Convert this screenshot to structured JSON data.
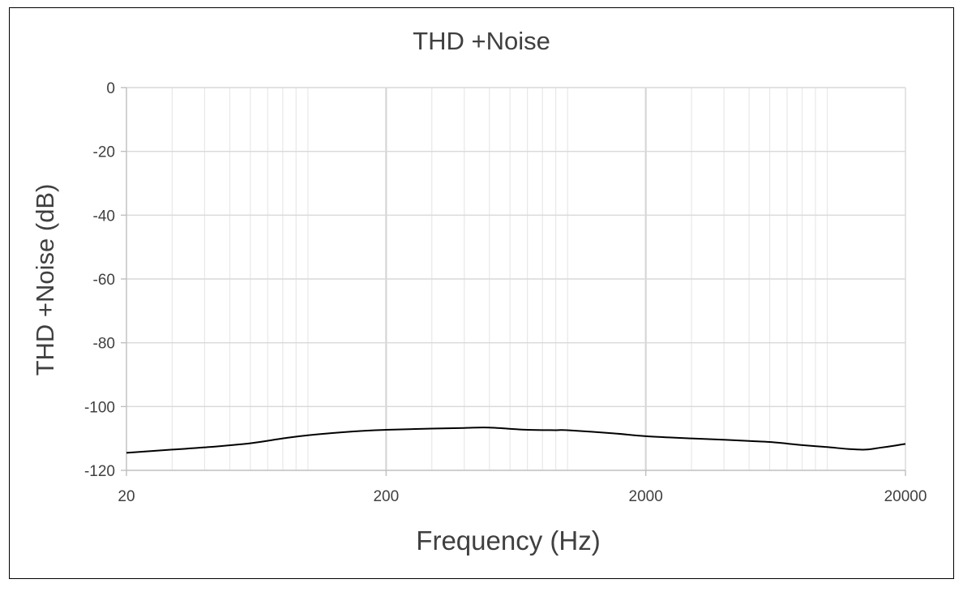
{
  "chart_data": {
    "type": "line",
    "title": "THD +Noise",
    "xlabel": "Frequency (Hz)",
    "ylabel": "THD +Noise (dB)",
    "x_scale": "log",
    "xlim": [
      20,
      20000
    ],
    "ylim": [
      -120,
      0
    ],
    "x_ticks": [
      "20",
      "200",
      "2000",
      "20000"
    ],
    "y_ticks": [
      "0",
      "-20",
      "-40",
      "-60",
      "-80",
      "-100",
      "-120"
    ],
    "grid": true,
    "legend": "none",
    "line_color": "#000000",
    "series": [
      {
        "x": [
          20,
          30,
          40,
          60,
          80,
          100,
          150,
          200,
          300,
          400,
          500,
          700,
          900,
          1000,
          1500,
          2000,
          3000,
          4000,
          5000,
          6000,
          7000,
          8000,
          10000,
          12000,
          14000,
          16000,
          18000,
          20000
        ],
        "values": [
          -114.5,
          -113.5,
          -112.8,
          -111.5,
          -110,
          -109,
          -107.8,
          -107.3,
          -106.9,
          -106.7,
          -106.6,
          -107.3,
          -107.4,
          -107.4,
          -108.4,
          -109.3,
          -110,
          -110.4,
          -110.8,
          -111.1,
          -111.6,
          -112.1,
          -112.7,
          -113.3,
          -113.5,
          -112.9,
          -112.3,
          -111.7
        ]
      }
    ]
  }
}
